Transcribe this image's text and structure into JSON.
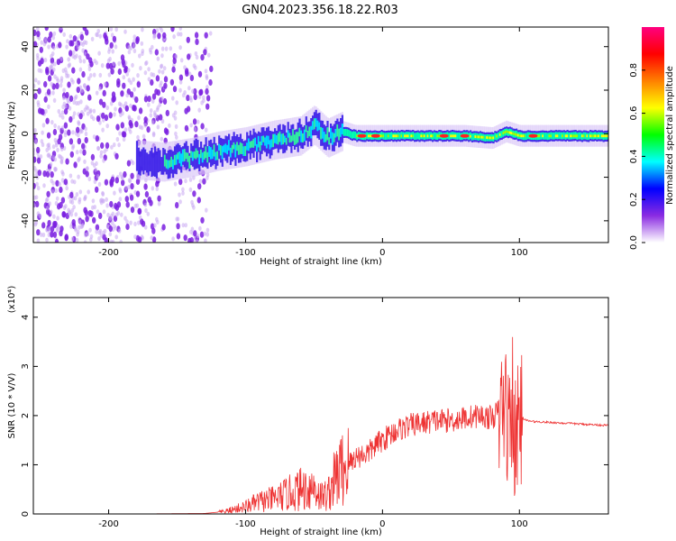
{
  "figure": {
    "title": "GN04.2023.356.18.22.R03"
  },
  "chart_data": [
    {
      "type": "heatmap",
      "xlabel": "Height of straight line (km)",
      "ylabel": "Frequency (Hz)",
      "xlim": [
        -255,
        165
      ],
      "ylim": [
        -50,
        49
      ],
      "xticks": [
        -200,
        -100,
        0,
        100
      ],
      "yticks": [
        -40,
        -20,
        0,
        20,
        40
      ],
      "xtick_labels": [
        "-200",
        "-100",
        "0",
        "100"
      ],
      "ytick_labels": [
        "-40",
        "-20",
        "0",
        "20",
        "40"
      ],
      "colorbar": {
        "label": "Normalized spectral amplitude",
        "range": [
          0,
          1
        ],
        "ticks": [
          0.0,
          0.2,
          0.4,
          0.6,
          0.8
        ],
        "tick_labels": [
          "0.0",
          "0.2",
          "0.4",
          "0.6",
          "0.8"
        ],
        "colors": [
          "#ffffff",
          "#8a2be2",
          "#0000ff",
          "#00ffff",
          "#00ff00",
          "#ffff00",
          "#ff8000",
          "#ff0000",
          "#ff0080"
        ]
      },
      "band_centerline": {
        "x": [
          -180,
          -160,
          -140,
          -120,
          -100,
          -80,
          -60,
          -50,
          -40,
          -30,
          -20,
          0,
          20,
          40,
          60,
          80,
          90,
          100,
          120,
          140,
          165
        ],
        "y": [
          -12,
          -13,
          -11,
          -8,
          -6,
          -3,
          -1,
          4,
          -2,
          1,
          -1,
          -1,
          -1,
          -1,
          -1,
          -2,
          1,
          -1,
          -1,
          -1,
          -1
        ]
      },
      "noise_region_x": [
        -255,
        -125
      ],
      "hotspots_x": [
        -15,
        -5,
        45,
        60,
        110
      ]
    },
    {
      "type": "line",
      "xlabel": "Height of straight line (km)",
      "ylabel": "SNR (10 * V/V)",
      "y_multiplier": "(x10⁴)",
      "xlim": [
        -255,
        165
      ],
      "ylim": [
        0,
        4.4
      ],
      "xticks": [
        -200,
        -100,
        0,
        100
      ],
      "yticks": [
        0,
        1,
        2,
        3,
        4
      ],
      "xtick_labels": [
        "-200",
        "-100",
        "0",
        "100"
      ],
      "ytick_labels": [
        "0",
        "1",
        "2",
        "3",
        "4"
      ],
      "line_color": "#ee3333",
      "x": [
        -255,
        -180,
        -130,
        -115,
        -100,
        -90,
        -80,
        -70,
        -60,
        -50,
        -45,
        -40,
        -35,
        -30,
        -25,
        -20,
        -15,
        -10,
        -5,
        0,
        10,
        20,
        30,
        40,
        50,
        60,
        70,
        80,
        85,
        90,
        93,
        95,
        97,
        100,
        105,
        110,
        130,
        150,
        165
      ],
      "y": [
        0,
        0,
        0.01,
        0.05,
        0.15,
        0.25,
        0.3,
        0.4,
        0.5,
        0.55,
        0.35,
        0.4,
        0.7,
        0.9,
        1.0,
        1.15,
        1.2,
        1.25,
        1.4,
        1.5,
        1.7,
        1.8,
        1.85,
        1.9,
        1.9,
        1.95,
        2.0,
        1.95,
        2.1,
        2.2,
        1.6,
        2.4,
        1.3,
        2.0,
        1.9,
        1.88,
        1.85,
        1.82,
        1.8
      ]
    }
  ]
}
